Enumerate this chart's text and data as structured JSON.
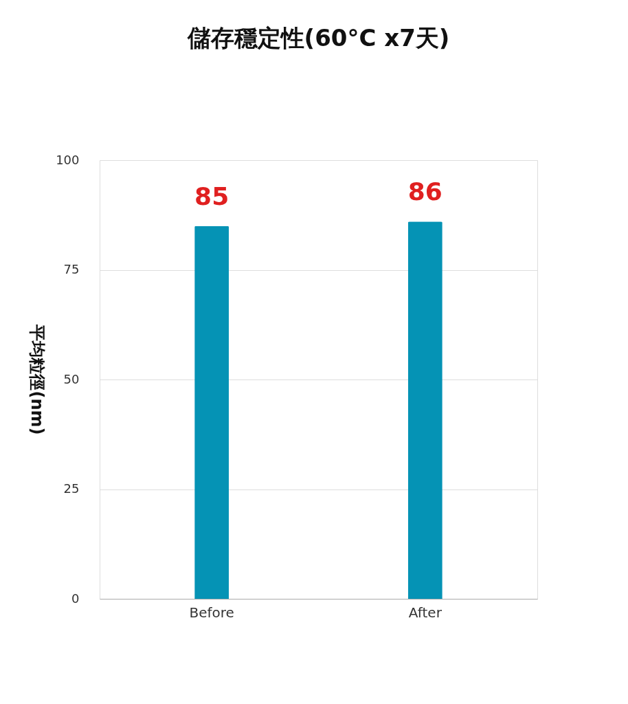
{
  "chart_data": {
    "type": "bar",
    "title": "儲存穩定性(60°C x7天)",
    "ylabel": "平均粒徑(nm)",
    "categories": [
      "Before",
      "After"
    ],
    "series": [
      {
        "color": "#0593b5",
        "values": [
          85,
          86
        ]
      }
    ],
    "ylim": [
      0,
      100
    ],
    "yticks": [
      0,
      25,
      50,
      75,
      100
    ],
    "grid": "y",
    "data_labels": true,
    "legend": false
  }
}
